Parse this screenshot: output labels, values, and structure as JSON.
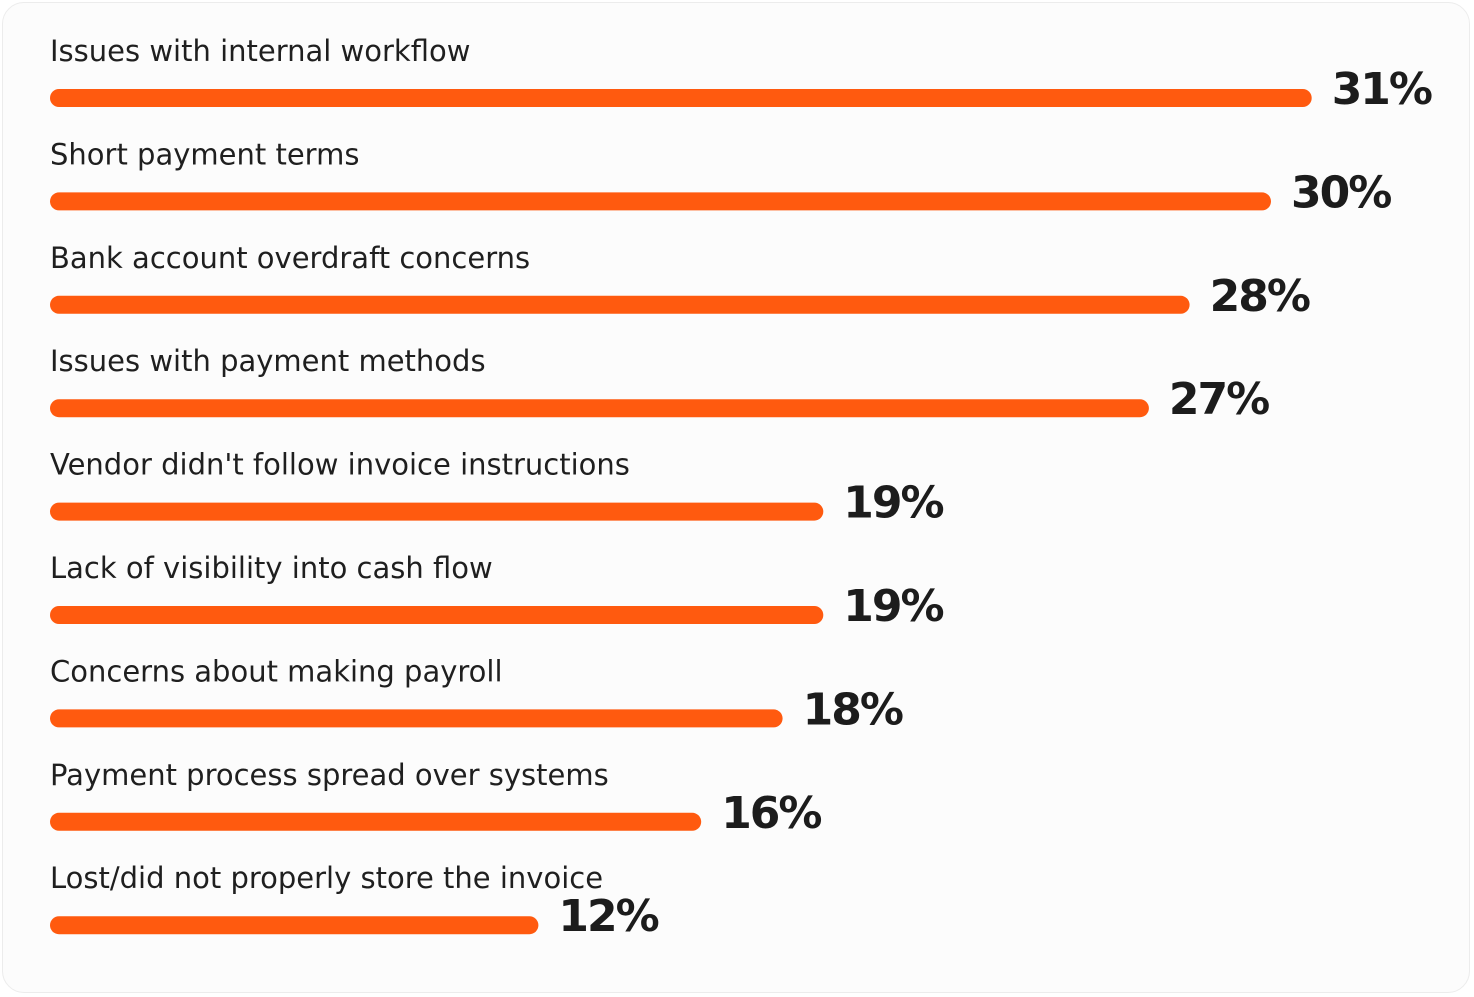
{
  "chart_data": {
    "type": "bar",
    "orientation": "horizontal",
    "categories": [
      "Issues with internal workflow",
      "Short payment terms",
      "Bank account overdraft concerns",
      "Issues with payment methods",
      "Vendor didn't follow invoice instructions",
      "Lack of visibility into cash flow",
      "Concerns about making payroll",
      "Payment process spread over systems",
      "Lost/did not properly store the invoice"
    ],
    "values": [
      31,
      30,
      28,
      27,
      19,
      19,
      18,
      16,
      12
    ],
    "value_labels": [
      "31%",
      "30%",
      "28%",
      "27%",
      "19%",
      "19%",
      "18%",
      "16%",
      "12%"
    ],
    "unit": "%",
    "bar_color": "#ff5a0f",
    "title": "",
    "xlabel": "",
    "ylabel": "",
    "grid": false,
    "legend": "none"
  }
}
